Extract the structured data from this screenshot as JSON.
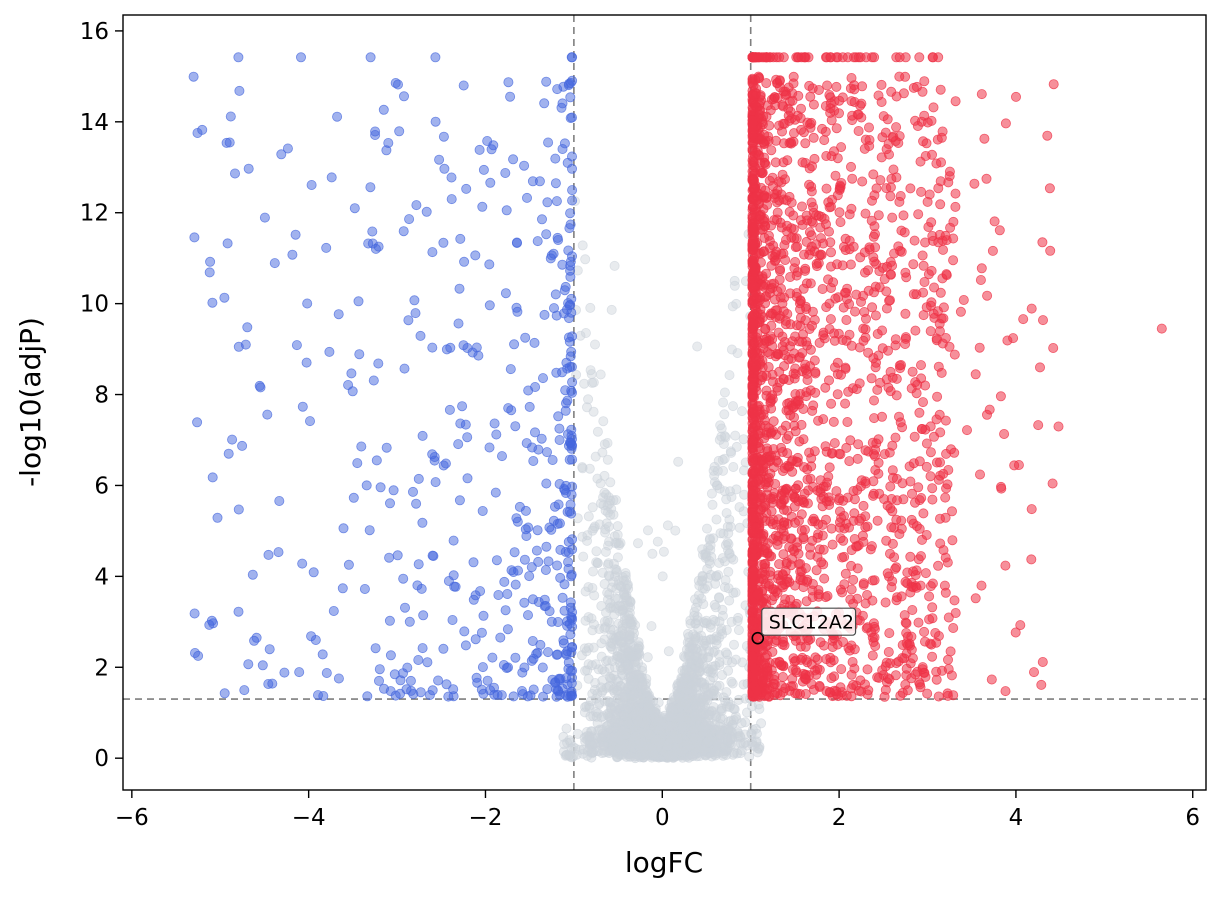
{
  "figure": {
    "background": "#ffffff"
  },
  "chart_data": {
    "type": "scatter",
    "subtype": "volcano-plot",
    "title": "",
    "xlabel": "logFC",
    "ylabel": "-log10(adjP)",
    "xlim": [
      -6.1,
      6.15
    ],
    "ylim": [
      -0.7,
      16.35
    ],
    "xticks": [
      -6,
      -4,
      -2,
      0,
      2,
      4,
      6
    ],
    "yticks": [
      0,
      2,
      4,
      6,
      8,
      10,
      12,
      14,
      16
    ],
    "grid": false,
    "legend": "none",
    "thresholds": {
      "vline_neg_x": -1,
      "vline_pos_x": 1,
      "hline_y": 1.3,
      "line_color": "#7f7f7f",
      "line_dash": "7 5",
      "line_width": 1.6
    },
    "marker_radius": 4.6,
    "series": [
      {
        "name": "not-significant",
        "color": "#ccd2da",
        "fill_opacity": 0.45,
        "edge_opacity": 0.6,
        "count": 3200,
        "seed": 101,
        "kind": "center-funnel",
        "gen": {
          "x_sigma": 0.42,
          "x_limit": 1.12,
          "funnel_coeff": 13.5,
          "funnel_pow": 1.6,
          "funnel_base": 0.5,
          "y_shape": 2.6,
          "y_noise": 0.45,
          "nonsig_y_max": 1.25,
          "high_tail_frac": 0.008,
          "high_tail_max": 12.5
        }
      },
      {
        "name": "down-regulated",
        "color": "#4466dd",
        "fill_opacity": 0.5,
        "edge_opacity": 0.7,
        "count": 520,
        "seed": 202,
        "kind": "left-tail",
        "gen": {
          "x_start": -1.02,
          "x_span": 4.3,
          "x_pow": 2.6,
          "y_min": 1.35,
          "y_span": 14.0,
          "y_pow": 1.6,
          "y_clip": 15.0,
          "y_clip_value": 15.42
        }
      },
      {
        "name": "up-regulated",
        "color": "#ee3347",
        "fill_opacity": 0.55,
        "edge_opacity": 0.75,
        "count": 2400,
        "seed": 303,
        "kind": "right-tail",
        "gen": {
          "x_start": 1.02,
          "x_span": 2.3,
          "x_pow": 3.0,
          "far_frac": 0.035,
          "far_start": 2.4,
          "far_span": 2.1,
          "y_min": 1.35,
          "y_span": 14.1,
          "y_pow": 1.25,
          "y_clip": 15.0,
          "y_clip_value": 15.42
        }
      }
    ],
    "outlier_points": [
      {
        "series": "up-regulated",
        "x": 5.65,
        "y": 9.45
      }
    ],
    "highlight_points": [
      {
        "label": "SLC12A2",
        "x": 1.08,
        "y": 2.64,
        "marker": "open-circle",
        "marker_color": "#000000",
        "label_box_fill": "#ffffff",
        "label_box_stroke": "#4a4a4a",
        "label_font_size": 19
      }
    ]
  }
}
